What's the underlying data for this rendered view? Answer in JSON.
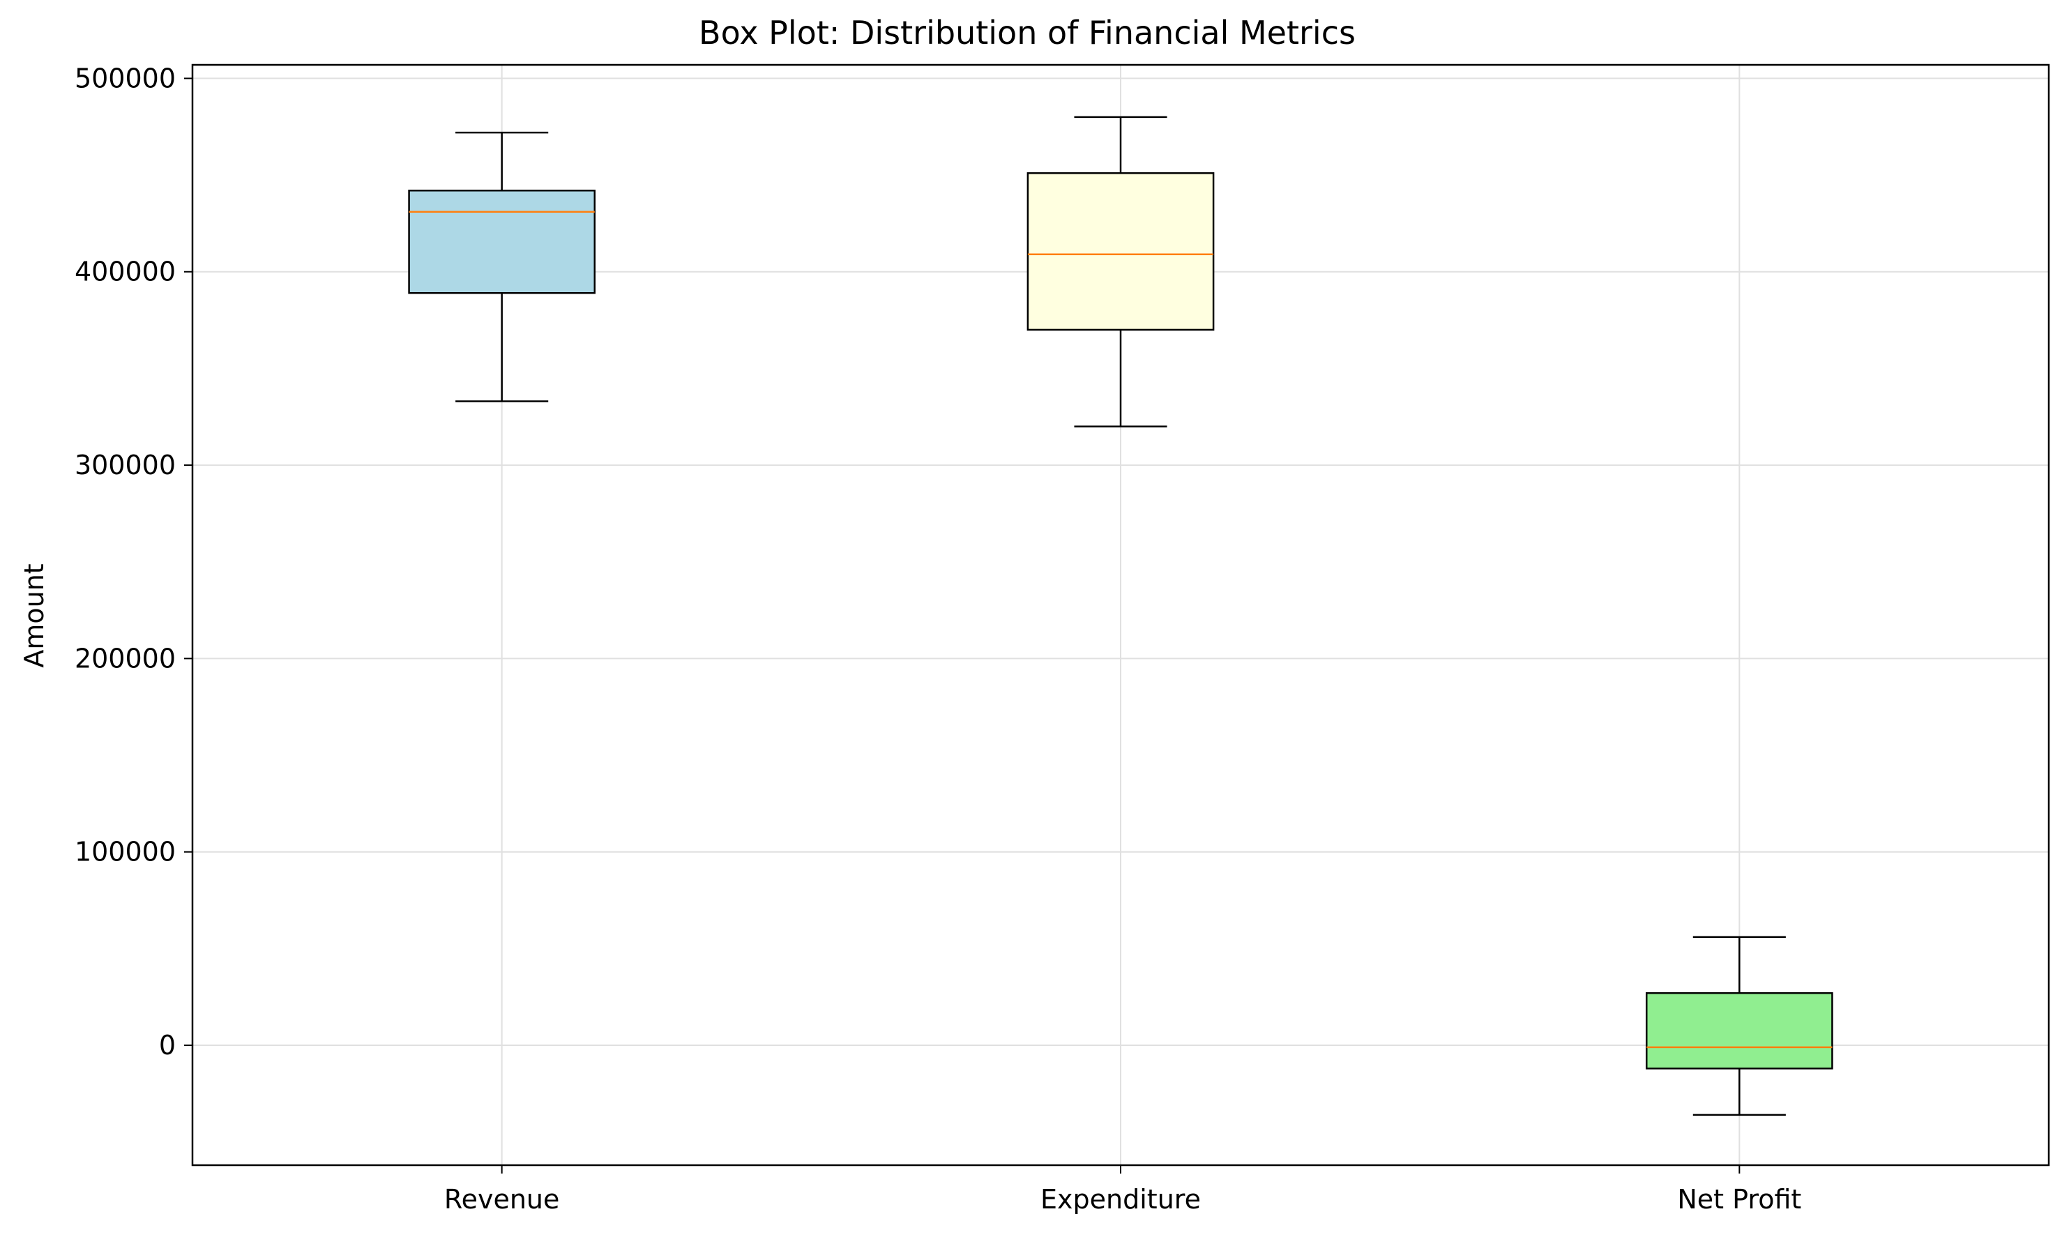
{
  "chart_data": {
    "type": "box",
    "title": "Box Plot: Distribution of Financial Metrics",
    "xlabel": "",
    "ylabel": "Amount",
    "ylim": [
      -62000,
      507000
    ],
    "yticks": [
      0,
      100000,
      200000,
      300000,
      400000,
      500000
    ],
    "ytick_labels": [
      "0",
      "100000",
      "200000",
      "300000",
      "400000",
      "500000"
    ],
    "grid": true,
    "legend": "none",
    "categories": [
      "Revenue",
      "Expenditure",
      "Net Profit"
    ],
    "boxes": [
      {
        "category": "Revenue",
        "whisker_low": 333000,
        "q1": 389000,
        "median": 431000,
        "q3": 442000,
        "whisker_high": 472000,
        "color": "#add8e6"
      },
      {
        "category": "Expenditure",
        "whisker_low": 320000,
        "q1": 370000,
        "median": 409000,
        "q3": 451000,
        "whisker_high": 480000,
        "color": "#ffffe0"
      },
      {
        "category": "Net Profit",
        "whisker_low": -36000,
        "q1": -12000,
        "median": -1000,
        "q3": 27000,
        "whisker_high": 56000,
        "color": "#90ee90"
      }
    ],
    "median_color": "#ff7f0e"
  }
}
